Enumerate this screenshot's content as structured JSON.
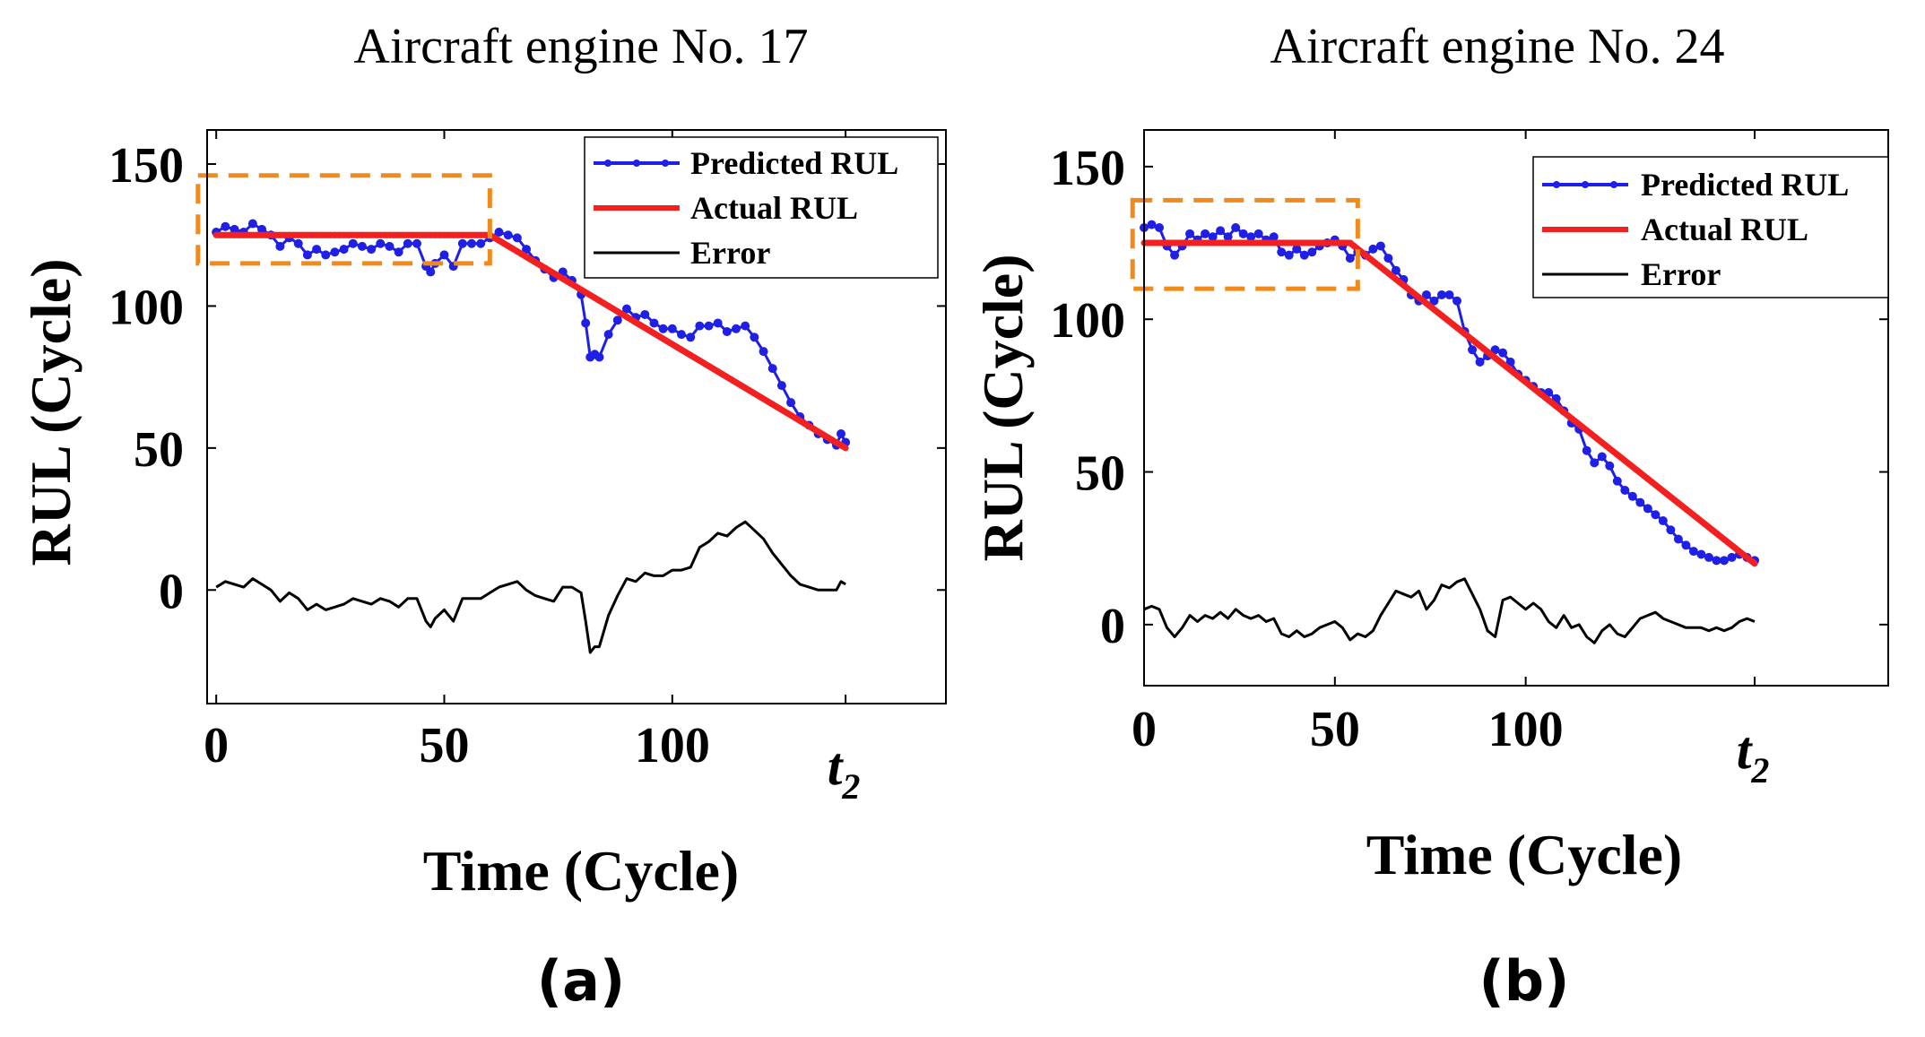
{
  "chart_data": [
    {
      "type": "line",
      "panel_label": "(a)",
      "title": "Aircraft engine No. 17",
      "xlabel": "Time (Cycle)",
      "ylabel": "RUL (Cycle)",
      "xlim": [
        -2,
        160
      ],
      "ylim": [
        -40,
        162
      ],
      "xticks": [
        {
          "value": 0,
          "label": "0"
        },
        {
          "value": 50,
          "label": "50"
        },
        {
          "value": 100,
          "label": "100"
        },
        {
          "value": 138,
          "label": "t",
          "sub": "2"
        }
      ],
      "yticks": [
        {
          "value": 0,
          "label": "0"
        },
        {
          "value": 50,
          "label": "50"
        },
        {
          "value": 100,
          "label": "100"
        },
        {
          "value": 150,
          "label": "150"
        }
      ],
      "legend": [
        "Predicted RUL",
        "Actual RUL",
        "Error"
      ],
      "colors": {
        "predicted": "#1f1fe6",
        "actual": "#f22020",
        "error": "#000000",
        "box": "#f08a1c"
      },
      "highlight_box": {
        "x0": -4,
        "x1": 60,
        "y0": 115,
        "y1": 146
      },
      "series": [
        {
          "name": "Predicted RUL",
          "x": [
            0,
            2,
            4,
            6,
            8,
            10,
            12,
            14,
            16,
            18,
            20,
            22,
            24,
            26,
            28,
            30,
            32,
            34,
            36,
            38,
            40,
            42,
            44,
            46,
            47,
            48,
            50,
            52,
            54,
            56,
            58,
            60,
            62,
            64,
            66,
            68,
            70,
            72,
            74,
            76,
            78,
            80,
            81,
            82,
            83,
            84,
            86,
            88,
            90,
            92,
            94,
            96,
            98,
            100,
            102,
            104,
            106,
            108,
            110,
            112,
            114,
            116,
            118,
            120,
            122,
            124,
            126,
            128,
            130,
            132,
            134,
            136,
            137,
            138
          ],
          "values": [
            126,
            128,
            127,
            126,
            129,
            127,
            125,
            121,
            124,
            122,
            118,
            120,
            118,
            119,
            120,
            122,
            121,
            120,
            122,
            121,
            119,
            122,
            122,
            114,
            112,
            115,
            118,
            114,
            122,
            122,
            122,
            124,
            126,
            125,
            124,
            120,
            116,
            113,
            110,
            112,
            109,
            104,
            94,
            82,
            83,
            82,
            90,
            95,
            99,
            96,
            97,
            94,
            92,
            92,
            90,
            89,
            93,
            93,
            94,
            91,
            92,
            93,
            89,
            84,
            78,
            72,
            66,
            61,
            58,
            55,
            53,
            51,
            55,
            52
          ]
        },
        {
          "name": "Actual RUL",
          "x": [
            0,
            60,
            138
          ],
          "values": [
            125,
            125,
            50
          ]
        },
        {
          "name": "Error",
          "x": [
            0,
            2,
            4,
            6,
            8,
            10,
            12,
            14,
            16,
            18,
            20,
            22,
            24,
            26,
            28,
            30,
            32,
            34,
            36,
            38,
            40,
            42,
            44,
            46,
            47,
            48,
            50,
            52,
            54,
            56,
            58,
            60,
            62,
            64,
            66,
            68,
            70,
            72,
            74,
            76,
            78,
            80,
            81,
            82,
            83,
            84,
            86,
            88,
            90,
            92,
            94,
            96,
            98,
            100,
            102,
            104,
            106,
            108,
            110,
            112,
            114,
            116,
            118,
            120,
            122,
            124,
            126,
            128,
            130,
            132,
            134,
            136,
            137,
            138
          ],
          "values": [
            1,
            3,
            2,
            1,
            4,
            2,
            0,
            -4,
            -1,
            -3,
            -7,
            -5,
            -7,
            -6,
            -5,
            -3,
            -4,
            -5,
            -3,
            -4,
            -6,
            -3,
            -3,
            -11,
            -13,
            -10,
            -7,
            -11,
            -3,
            -3,
            -3,
            -1,
            1,
            2,
            3,
            0,
            -2,
            -3,
            -4,
            1,
            1,
            -1,
            -11,
            -22,
            -20,
            -20,
            -9,
            -2,
            4,
            3,
            6,
            5,
            5,
            7,
            7,
            8,
            15,
            17,
            20,
            19,
            22,
            24,
            21,
            18,
            13,
            9,
            5,
            2,
            1,
            0,
            0,
            0,
            3,
            2
          ]
        }
      ]
    },
    {
      "type": "line",
      "panel_label": "(b)",
      "title": "Aircraft engine No. 24",
      "xlabel": "Time (Cycle)",
      "ylabel": "RUL (Cycle)",
      "xlim": [
        0,
        195
      ],
      "ylim": [
        -20,
        162
      ],
      "xticks": [
        {
          "value": 0,
          "label": "0"
        },
        {
          "value": 50,
          "label": "50"
        },
        {
          "value": 100,
          "label": "100"
        },
        {
          "value": 160,
          "label": "t",
          "sub": "2"
        }
      ],
      "yticks": [
        {
          "value": 0,
          "label": "0"
        },
        {
          "value": 50,
          "label": "50"
        },
        {
          "value": 100,
          "label": "100"
        },
        {
          "value": 150,
          "label": "150"
        }
      ],
      "legend": [
        "Predicted RUL",
        "Actual RUL",
        "Error"
      ],
      "colors": {
        "predicted": "#1f1fe6",
        "actual": "#f22020",
        "error": "#000000",
        "box": "#f08a1c"
      },
      "highlight_box": {
        "x0": -3,
        "x1": 56,
        "y0": 110,
        "y1": 139
      },
      "series": [
        {
          "name": "Predicted RUL",
          "x": [
            0,
            2,
            4,
            6,
            8,
            10,
            12,
            14,
            16,
            18,
            20,
            22,
            24,
            26,
            28,
            30,
            32,
            34,
            36,
            38,
            40,
            42,
            44,
            46,
            48,
            50,
            52,
            54,
            56,
            58,
            60,
            62,
            64,
            66,
            68,
            70,
            72,
            74,
            76,
            78,
            80,
            82,
            84,
            86,
            88,
            90,
            92,
            94,
            96,
            98,
            100,
            102,
            104,
            106,
            108,
            110,
            112,
            114,
            116,
            118,
            120,
            122,
            124,
            126,
            128,
            130,
            132,
            134,
            136,
            138,
            140,
            142,
            144,
            146,
            148,
            150,
            152,
            154,
            156,
            158,
            160
          ],
          "values": [
            130,
            131,
            130,
            124,
            121,
            124,
            128,
            126,
            128,
            127,
            129,
            127,
            130,
            128,
            127,
            128,
            126,
            127,
            122,
            121,
            123,
            121,
            122,
            124,
            125,
            126,
            124,
            120,
            122,
            121,
            123,
            124,
            120,
            116,
            113,
            108,
            106,
            108,
            106,
            108,
            108,
            106,
            96,
            90,
            86,
            88,
            90,
            89,
            86,
            82,
            80,
            78,
            76,
            76,
            74,
            70,
            66,
            64,
            57,
            53,
            55,
            52,
            47,
            44,
            42,
            40,
            38,
            36,
            34,
            31,
            28,
            26,
            24,
            23,
            22,
            21,
            21,
            22,
            23,
            22,
            21
          ]
        },
        {
          "name": "Actual RUL",
          "x": [
            0,
            54,
            160
          ],
          "values": [
            125,
            125,
            20
          ]
        },
        {
          "name": "Error",
          "x": [
            0,
            2,
            4,
            6,
            8,
            10,
            12,
            14,
            16,
            18,
            20,
            22,
            24,
            26,
            28,
            30,
            32,
            34,
            36,
            38,
            40,
            42,
            44,
            46,
            48,
            50,
            52,
            54,
            56,
            58,
            60,
            62,
            64,
            66,
            68,
            70,
            72,
            74,
            76,
            78,
            80,
            82,
            84,
            86,
            88,
            90,
            92,
            94,
            96,
            98,
            100,
            102,
            104,
            106,
            108,
            110,
            112,
            114,
            116,
            118,
            120,
            122,
            124,
            126,
            128,
            130,
            132,
            134,
            136,
            138,
            140,
            142,
            144,
            146,
            148,
            150,
            152,
            154,
            156,
            158,
            160
          ],
          "values": [
            5,
            6,
            5,
            -1,
            -4,
            -1,
            3,
            1,
            3,
            2,
            4,
            2,
            5,
            3,
            2,
            3,
            1,
            2,
            -3,
            -4,
            -2,
            -4,
            -3,
            -1,
            0,
            1,
            -1,
            -5,
            -3,
            -4,
            -2,
            3,
            7,
            11,
            10,
            9,
            11,
            5,
            8,
            13,
            12,
            14,
            15,
            10,
            5,
            -2,
            -4,
            8,
            9,
            7,
            5,
            7,
            5,
            1,
            -1,
            3,
            -1,
            0,
            -4,
            -6,
            -2,
            0,
            -3,
            -4,
            -1,
            2,
            3,
            4,
            2,
            1,
            0,
            -1,
            -1,
            -1,
            -2,
            -1,
            -2,
            -1,
            1,
            2,
            1
          ]
        }
      ]
    }
  ]
}
